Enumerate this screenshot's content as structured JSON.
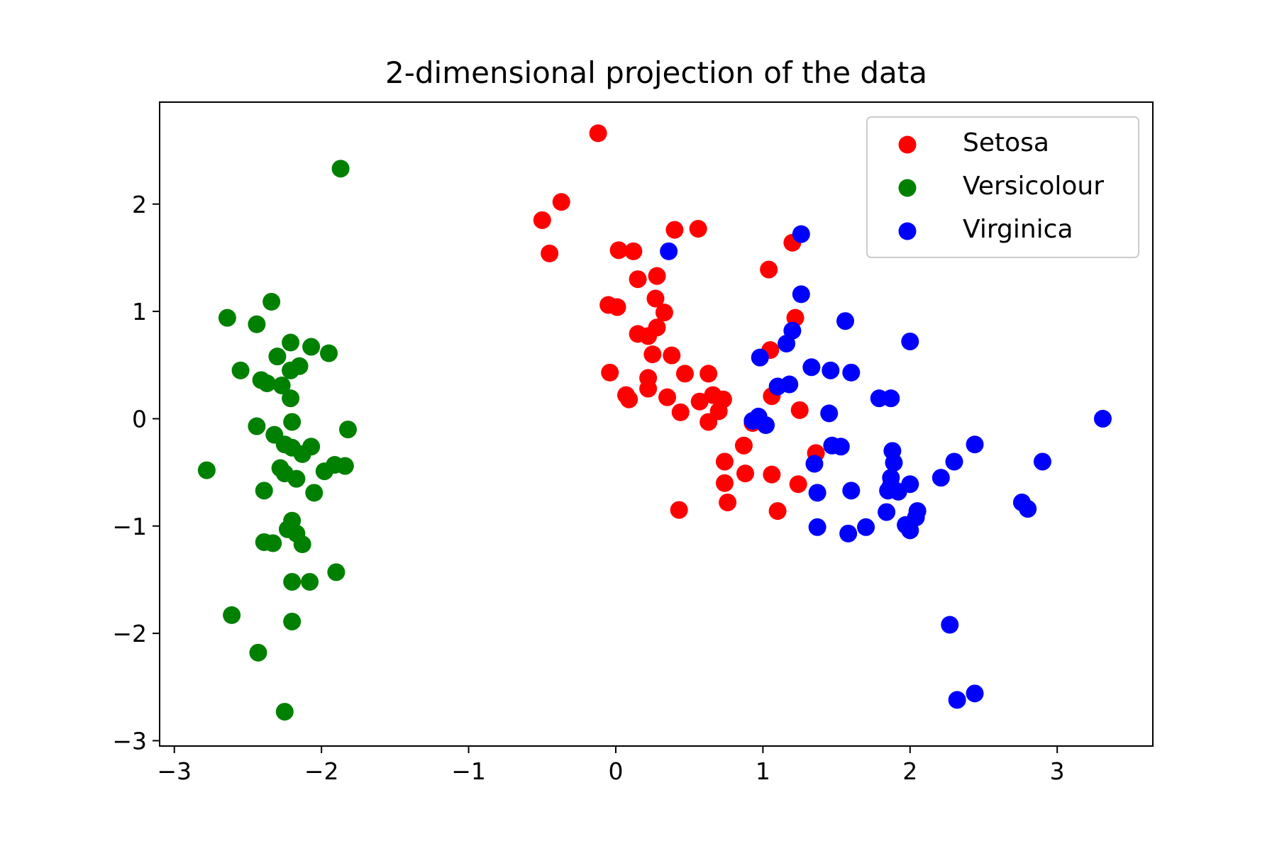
{
  "chart_data": {
    "type": "scatter",
    "title": "2-dimensional projection of the data",
    "xlabel": "",
    "ylabel": "",
    "xlim": [
      -3.1,
      3.65
    ],
    "ylim": [
      -3.05,
      2.95
    ],
    "xticks": [
      -3,
      -2,
      -1,
      0,
      1,
      2,
      3
    ],
    "yticks": [
      -3,
      -2,
      -1,
      0,
      1,
      2
    ],
    "grid": false,
    "legend_position": "top-right",
    "series": [
      {
        "name": "Setosa",
        "color": "#ff0000",
        "points": [
          [
            -0.12,
            2.66
          ],
          [
            -0.37,
            2.02
          ],
          [
            -0.5,
            1.85
          ],
          [
            -0.45,
            1.54
          ],
          [
            0.4,
            1.76
          ],
          [
            0.56,
            1.77
          ],
          [
            0.02,
            1.57
          ],
          [
            0.12,
            1.56
          ],
          [
            0.15,
            1.3
          ],
          [
            0.28,
            1.33
          ],
          [
            -0.05,
            1.06
          ],
          [
            0.01,
            1.04
          ],
          [
            0.27,
            1.12
          ],
          [
            0.33,
            0.99
          ],
          [
            0.15,
            0.79
          ],
          [
            0.22,
            0.77
          ],
          [
            0.28,
            0.85
          ],
          [
            0.25,
            0.6
          ],
          [
            0.38,
            0.59
          ],
          [
            -0.04,
            0.43
          ],
          [
            0.22,
            0.38
          ],
          [
            0.22,
            0.28
          ],
          [
            0.47,
            0.42
          ],
          [
            0.63,
            0.42
          ],
          [
            0.07,
            0.22
          ],
          [
            0.09,
            0.18
          ],
          [
            0.35,
            0.2
          ],
          [
            0.57,
            0.16
          ],
          [
            0.66,
            0.22
          ],
          [
            0.73,
            0.18
          ],
          [
            0.44,
            0.06
          ],
          [
            0.7,
            0.07
          ],
          [
            0.63,
            -0.03
          ],
          [
            1.2,
            1.64
          ],
          [
            1.04,
            1.39
          ],
          [
            1.22,
            0.94
          ],
          [
            1.05,
            0.64
          ],
          [
            1.06,
            0.21
          ],
          [
            1.25,
            0.08
          ],
          [
            0.93,
            -0.04
          ],
          [
            1.36,
            -0.32
          ],
          [
            0.87,
            -0.25
          ],
          [
            0.74,
            -0.4
          ],
          [
            0.88,
            -0.51
          ],
          [
            1.06,
            -0.52
          ],
          [
            0.74,
            -0.6
          ],
          [
            1.24,
            -0.61
          ],
          [
            0.76,
            -0.78
          ],
          [
            0.43,
            -0.85
          ],
          [
            1.1,
            -0.86
          ]
        ]
      },
      {
        "name": "Versicolour",
        "color": "#008000",
        "points": [
          [
            -1.87,
            2.33
          ],
          [
            -2.34,
            1.09
          ],
          [
            -2.64,
            0.94
          ],
          [
            -2.44,
            0.88
          ],
          [
            -2.21,
            0.71
          ],
          [
            -2.07,
            0.67
          ],
          [
            -1.95,
            0.61
          ],
          [
            -2.3,
            0.58
          ],
          [
            -2.55,
            0.45
          ],
          [
            -2.15,
            0.49
          ],
          [
            -2.21,
            0.45
          ],
          [
            -2.41,
            0.36
          ],
          [
            -2.37,
            0.33
          ],
          [
            -2.27,
            0.31
          ],
          [
            -2.21,
            0.19
          ],
          [
            -2.44,
            -0.07
          ],
          [
            -2.2,
            -0.03
          ],
          [
            -1.82,
            -0.1
          ],
          [
            -2.32,
            -0.15
          ],
          [
            -2.25,
            -0.24
          ],
          [
            -2.2,
            -0.27
          ],
          [
            -2.07,
            -0.26
          ],
          [
            -2.13,
            -0.33
          ],
          [
            -2.28,
            -0.46
          ],
          [
            -2.78,
            -0.48
          ],
          [
            -1.98,
            -0.49
          ],
          [
            -1.91,
            -0.43
          ],
          [
            -1.84,
            -0.44
          ],
          [
            -2.25,
            -0.51
          ],
          [
            -2.17,
            -0.56
          ],
          [
            -2.05,
            -0.69
          ],
          [
            -2.39,
            -0.67
          ],
          [
            -2.2,
            -0.95
          ],
          [
            -2.23,
            -1.03
          ],
          [
            -2.17,
            -1.07
          ],
          [
            -2.13,
            -1.17
          ],
          [
            -2.39,
            -1.15
          ],
          [
            -2.33,
            -1.16
          ],
          [
            -1.9,
            -1.43
          ],
          [
            -2.2,
            -1.52
          ],
          [
            -2.08,
            -1.52
          ],
          [
            -2.2,
            -1.89
          ],
          [
            -2.61,
            -1.83
          ],
          [
            -2.43,
            -2.18
          ],
          [
            -2.25,
            -2.73
          ]
        ]
      },
      {
        "name": "Virginica",
        "color": "#0000ff",
        "points": [
          [
            0.36,
            1.56
          ],
          [
            1.26,
            1.72
          ],
          [
            1.26,
            1.16
          ],
          [
            1.56,
            0.91
          ],
          [
            2.0,
            0.72
          ],
          [
            1.2,
            0.82
          ],
          [
            1.16,
            0.7
          ],
          [
            0.98,
            0.57
          ],
          [
            1.33,
            0.48
          ],
          [
            1.46,
            0.45
          ],
          [
            1.6,
            0.43
          ],
          [
            1.1,
            0.3
          ],
          [
            1.18,
            0.32
          ],
          [
            1.79,
            0.19
          ],
          [
            1.87,
            0.19
          ],
          [
            1.45,
            0.05
          ],
          [
            0.97,
            0.02
          ],
          [
            0.93,
            -0.02
          ],
          [
            1.02,
            -0.06
          ],
          [
            3.31,
            0.0
          ],
          [
            1.47,
            -0.25
          ],
          [
            1.53,
            -0.26
          ],
          [
            1.88,
            -0.3
          ],
          [
            1.89,
            -0.41
          ],
          [
            2.44,
            -0.24
          ],
          [
            1.35,
            -0.42
          ],
          [
            2.3,
            -0.4
          ],
          [
            2.9,
            -0.4
          ],
          [
            2.21,
            -0.55
          ],
          [
            1.87,
            -0.55
          ],
          [
            1.87,
            -0.62
          ],
          [
            1.85,
            -0.67
          ],
          [
            1.92,
            -0.68
          ],
          [
            2.0,
            -0.61
          ],
          [
            1.37,
            -0.69
          ],
          [
            1.6,
            -0.67
          ],
          [
            2.76,
            -0.78
          ],
          [
            2.8,
            -0.84
          ],
          [
            2.05,
            -0.86
          ],
          [
            2.04,
            -0.92
          ],
          [
            1.84,
            -0.87
          ],
          [
            1.97,
            -0.99
          ],
          [
            2.0,
            -1.04
          ],
          [
            1.37,
            -1.01
          ],
          [
            1.58,
            -1.07
          ],
          [
            1.7,
            -1.01
          ],
          [
            2.27,
            -1.92
          ],
          [
            2.32,
            -2.62
          ],
          [
            2.44,
            -2.56
          ]
        ]
      }
    ]
  }
}
